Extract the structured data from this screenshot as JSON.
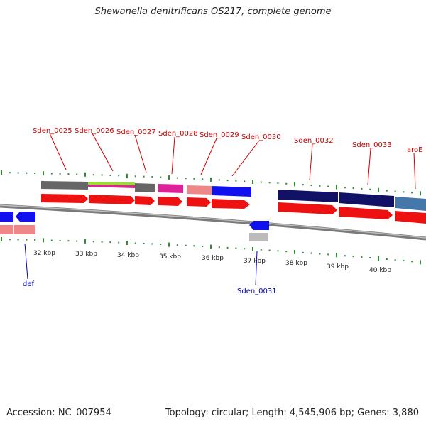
{
  "title": "Shewanella denitrificans OS217, complete genome",
  "footer": {
    "accession": "Accession: NC_007954",
    "summary": "Topology: circular; Length: 4,545,906 bp; Genes: 3,880"
  },
  "colors": {
    "forward_gene": "#ee1111",
    "reverse_gene": "#1111ee",
    "backbone": "#888888",
    "tick": "#2e8b2e",
    "label_forward": "#cc0000",
    "label_reverse": "#0000bb"
  },
  "scale_labels": [
    "32 kbp",
    "33 kbp",
    "34 kbp",
    "35 kbp",
    "36 kbp",
    "37 kbp",
    "38 kbp",
    "39 kbp",
    "40 kbp"
  ],
  "gene_labels": {
    "forward": [
      "Sden_0025",
      "Sden_0026",
      "Sden_0027",
      "Sden_0028",
      "Sden_0029",
      "Sden_0030",
      "Sden_0032",
      "Sden_0033",
      "aroE"
    ],
    "reverse": [
      "def",
      "Sden_0031"
    ]
  },
  "feature_colors": {
    "orf_dark_gray": "#666666",
    "orf_green": "#99dd33",
    "orf_magenta": "#dd2299",
    "orf_pink": "#ee8888",
    "orf_navy": "#111166",
    "orf_steel": "#4477aa",
    "orf_light_gray": "#bbbbbb"
  }
}
